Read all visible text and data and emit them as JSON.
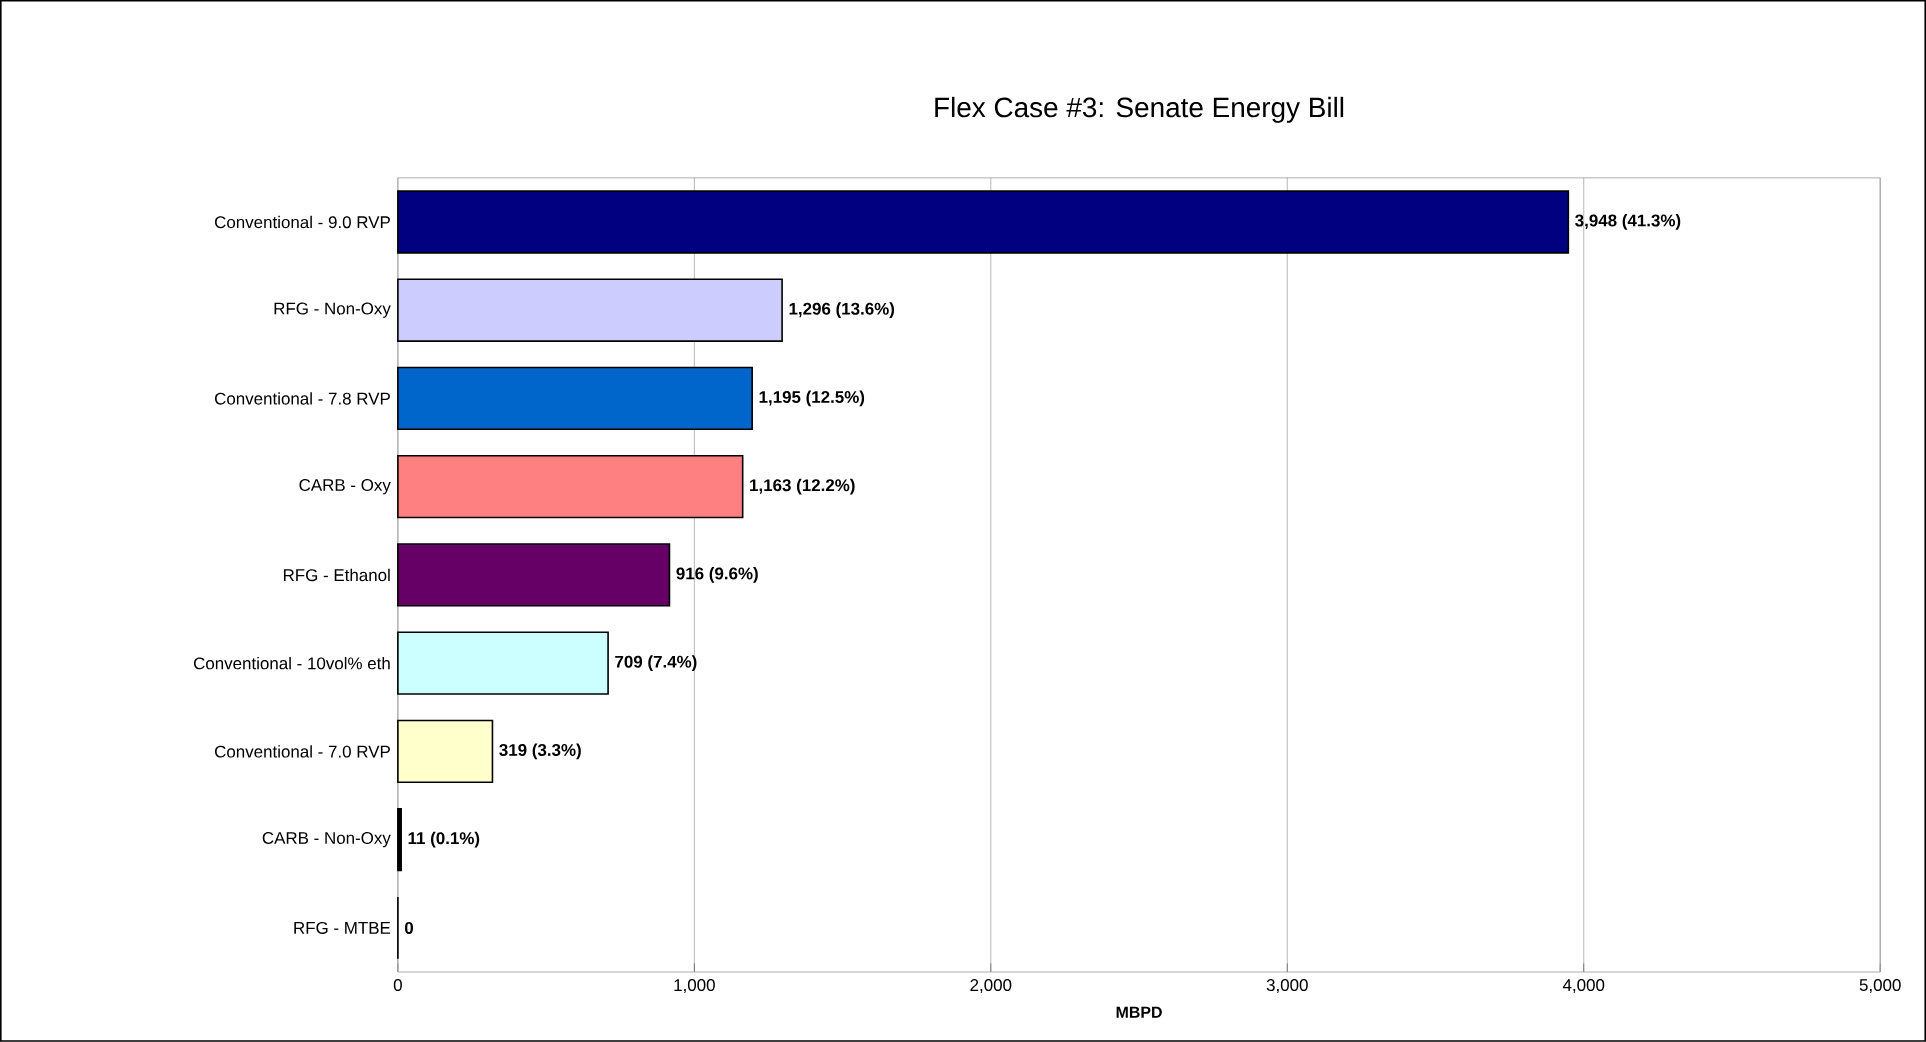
{
  "chart_data": {
    "type": "bar",
    "orientation": "horizontal",
    "title": "Flex Case #3: Senate Energy Bill",
    "xlabel": "MBPD",
    "categories": [
      "Conventional - 9.0 RVP",
      "RFG - Non-Oxy",
      "Conventional - 7.8 RVP",
      "CARB - Oxy",
      "RFG - Ethanol",
      "Conventional - 10vol% eth",
      "Conventional - 7.0 RVP",
      "CARB - Non-Oxy",
      "RFG - MTBE"
    ],
    "values": [
      3948,
      1296,
      1195,
      1163,
      916,
      709,
      319,
      11,
      0
    ],
    "colors": [
      "#000080",
      "#ccccff",
      "#0066cc",
      "#ff8080",
      "#660066",
      "#ccffff",
      "#ffffcc",
      "#000000",
      "#000000"
    ],
    "value_labels": [
      "3,948 (41.3%)",
      "1,296 (13.6%)",
      "1,195 (12.5%)",
      "1,163 (12.2%)",
      "916 (9.6%)",
      "709 (7.4%)",
      "319 (3.3%)",
      "11 (0.1%)",
      "0"
    ],
    "xlim": [
      0,
      5000
    ],
    "xticks": [
      0,
      {
        "value": 1000,
        "label": "1,000"
      },
      {
        "value": 2000,
        "label": "2,000"
      },
      {
        "value": 3000,
        "label": "3,000"
      },
      {
        "value": 4000,
        "label": "4,000"
      },
      {
        "value": 5000,
        "label": "5,000"
      }
    ],
    "grid": "x"
  }
}
